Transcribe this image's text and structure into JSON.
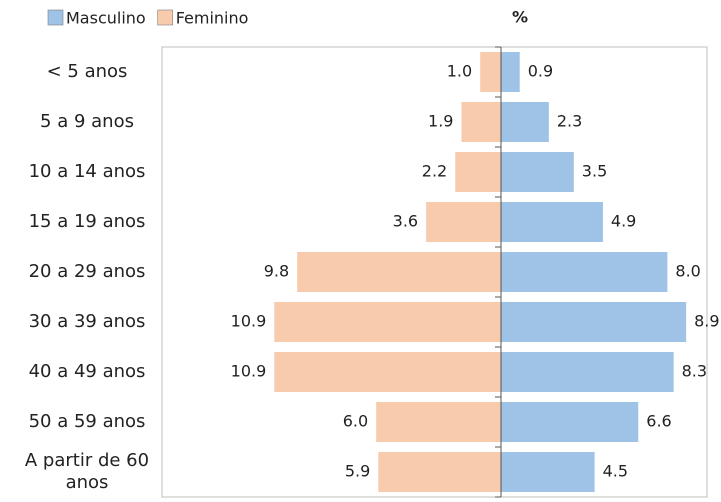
{
  "chart_data": {
    "type": "pyramid",
    "title": "%",
    "categories": [
      "< 5 anos",
      "5 a 9 anos",
      "10 a 14 anos",
      "15 a 19 anos",
      "20 a 29 anos",
      "30 a 39 anos",
      "40 a 49 anos",
      "50 a 59 anos",
      "A partir de 60 anos"
    ],
    "series": [
      {
        "name": "Masculino",
        "color": "#9fc2e7",
        "side": "right",
        "values": [
          0.9,
          2.3,
          3.5,
          4.9,
          8.0,
          8.9,
          8.3,
          6.6,
          4.5
        ],
        "value_labels": [
          "0.9",
          "2.3",
          "3.5",
          "4.9",
          "8.0",
          "8.9",
          "8.3",
          "6.6",
          "4.5"
        ]
      },
      {
        "name": "Feminino",
        "color": "#f8cbad",
        "side": "left",
        "values": [
          1.0,
          1.9,
          2.2,
          3.6,
          9.8,
          10.9,
          10.9,
          6.0,
          5.9
        ],
        "value_labels": [
          "1.0",
          "1.9",
          "2.2",
          "3.6",
          "9.8",
          "10.9",
          "10.9",
          "6.0",
          "5.9"
        ]
      }
    ]
  }
}
